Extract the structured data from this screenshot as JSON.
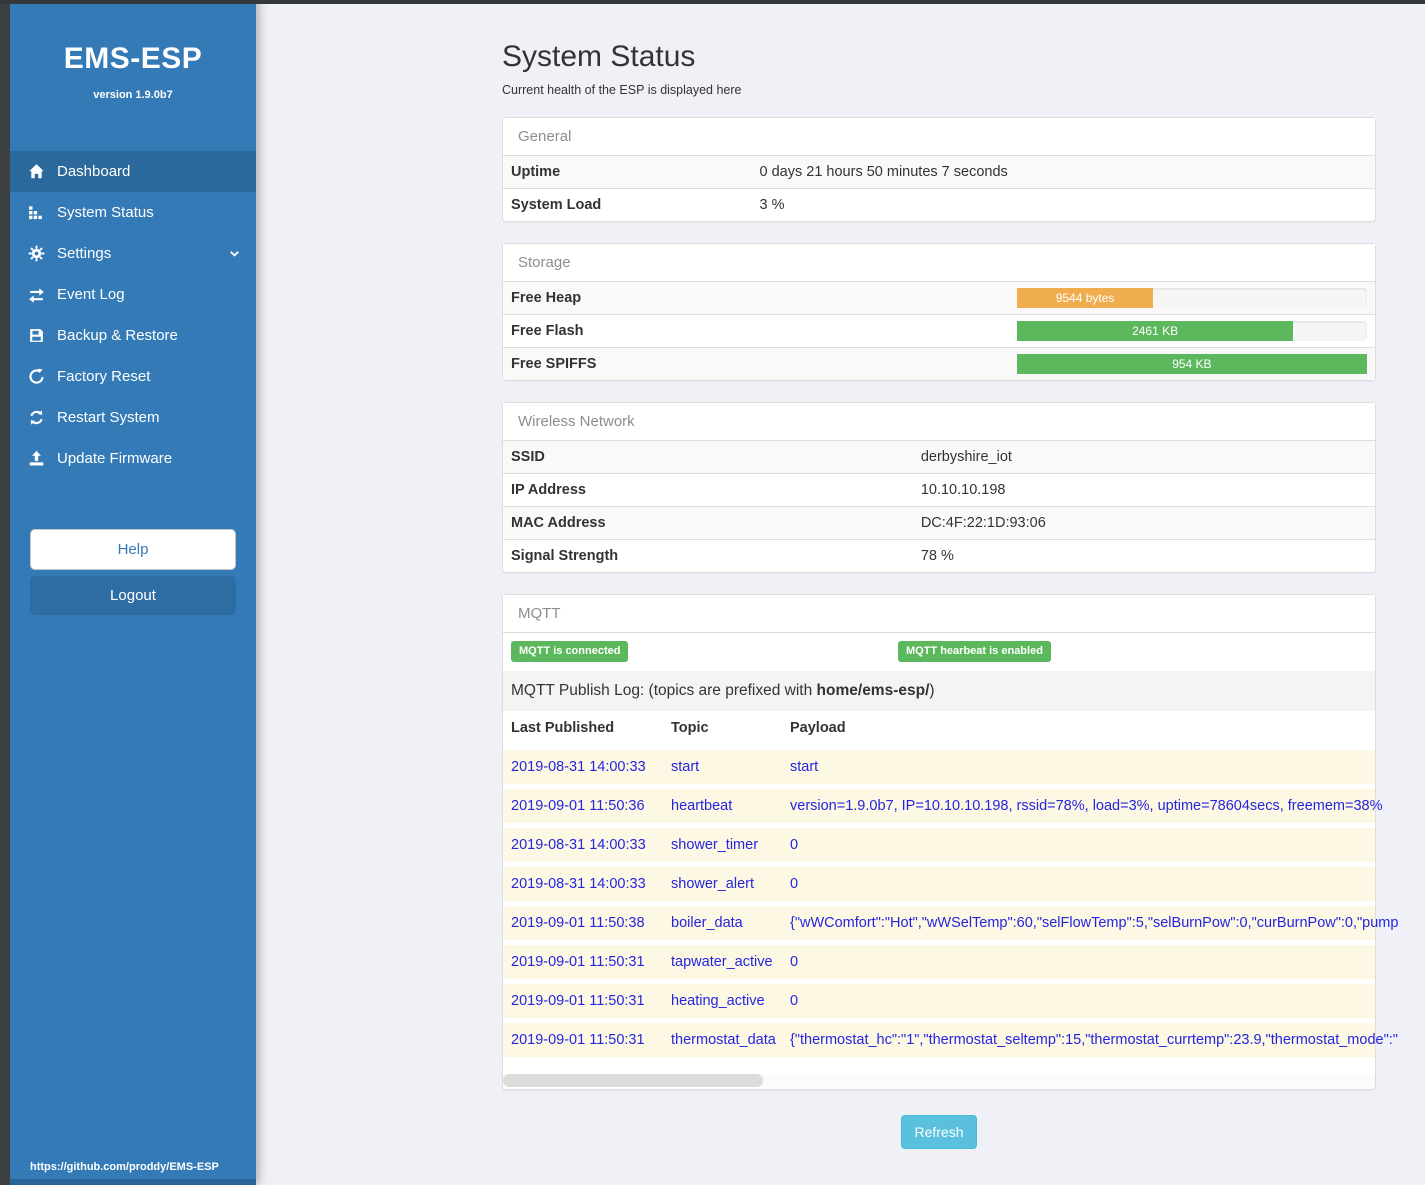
{
  "app": {
    "brand": "EMS-ESP",
    "version": "version 1.9.0b7",
    "footer_link": "https://github.com/proddy/EMS-ESP"
  },
  "sidebar": {
    "items": [
      {
        "label": "Dashboard",
        "icon": "home-icon",
        "active": true
      },
      {
        "label": "System Status",
        "icon": "system-status-icon",
        "active": false
      },
      {
        "label": "Settings",
        "icon": "gear-icon",
        "active": false,
        "has_chevron": true
      },
      {
        "label": "Event Log",
        "icon": "exchange-icon",
        "active": false
      },
      {
        "label": "Backup & Restore",
        "icon": "save-icon",
        "active": false
      },
      {
        "label": "Factory Reset",
        "icon": "rotate-left-icon",
        "active": false
      },
      {
        "label": "Restart System",
        "icon": "refresh-icon",
        "active": false
      },
      {
        "label": "Update Firmware",
        "icon": "upload-icon",
        "active": false
      }
    ],
    "help_label": "Help",
    "logout_label": "Logout"
  },
  "page": {
    "title": "System Status",
    "subtitle": "Current health of the ESP is displayed here",
    "refresh_label": "Refresh"
  },
  "panels": {
    "general": {
      "title": "General",
      "rows": [
        {
          "label": "Uptime",
          "value": "0 days 21 hours 50 minutes 7 seconds"
        },
        {
          "label": "System Load",
          "value": "3 %"
        }
      ]
    },
    "storage": {
      "title": "Storage",
      "rows": [
        {
          "label": "Free Heap",
          "value": "9544 bytes",
          "percent": 39,
          "status": "warning"
        },
        {
          "label": "Free Flash",
          "value": "2461 KB",
          "percent": 79,
          "status": "success"
        },
        {
          "label": "Free SPIFFS",
          "value": "954 KB",
          "percent": 100,
          "status": "success"
        }
      ]
    },
    "wireless": {
      "title": "Wireless Network",
      "rows": [
        {
          "label": "SSID",
          "value": "derbyshire_iot"
        },
        {
          "label": "IP Address",
          "value": "10.10.10.198"
        },
        {
          "label": "MAC Address",
          "value": "DC:4F:22:1D:93:06"
        },
        {
          "label": "Signal Strength",
          "value": "78 %"
        }
      ]
    },
    "mqtt": {
      "title": "MQTT",
      "badges": [
        "MQTT is connected",
        "MQTT hearbeat is enabled"
      ],
      "publish_log": {
        "prefix": "MQTT Publish Log: (topics are prefixed with ",
        "bold": "home/ems-esp/",
        "suffix": ")"
      },
      "table": {
        "headers": [
          "Last Published",
          "Topic",
          "Payload"
        ],
        "rows": [
          {
            "time": "2019-08-31 14:00:33",
            "topic": "start",
            "payload": "start"
          },
          {
            "time": "2019-09-01 11:50:36",
            "topic": "heartbeat",
            "payload": "version=1.9.0b7, IP=10.10.10.198, rssid=78%, load=3%, uptime=78604secs, freemem=38%"
          },
          {
            "time": "2019-08-31 14:00:33",
            "topic": "shower_timer",
            "payload": "0"
          },
          {
            "time": "2019-08-31 14:00:33",
            "topic": "shower_alert",
            "payload": "0"
          },
          {
            "time": "2019-09-01 11:50:38",
            "topic": "boiler_data",
            "payload": "{\"wWComfort\":\"Hot\",\"wWSelTemp\":60,\"selFlowTemp\":5,\"selBurnPow\":0,\"curBurnPow\":0,\"pump"
          },
          {
            "time": "2019-09-01 11:50:31",
            "topic": "tapwater_active",
            "payload": "0"
          },
          {
            "time": "2019-09-01 11:50:31",
            "topic": "heating_active",
            "payload": "0"
          },
          {
            "time": "2019-09-01 11:50:31",
            "topic": "thermostat_data",
            "payload": "{\"thermostat_hc\":\"1\",\"thermostat_seltemp\":15,\"thermostat_currtemp\":23.9,\"thermostat_mode\":\""
          }
        ]
      }
    }
  },
  "colors": {
    "sidebar": "#337ab7",
    "sidebar_active": "#2b689c",
    "success": "#5cb85c",
    "warning": "#f0ad4e",
    "info": "#5bc0de",
    "mqtt_text": "#2525e0",
    "cream": "#fcf8e3",
    "logout": "#2e6da4",
    "help_text": "#337ab7"
  }
}
